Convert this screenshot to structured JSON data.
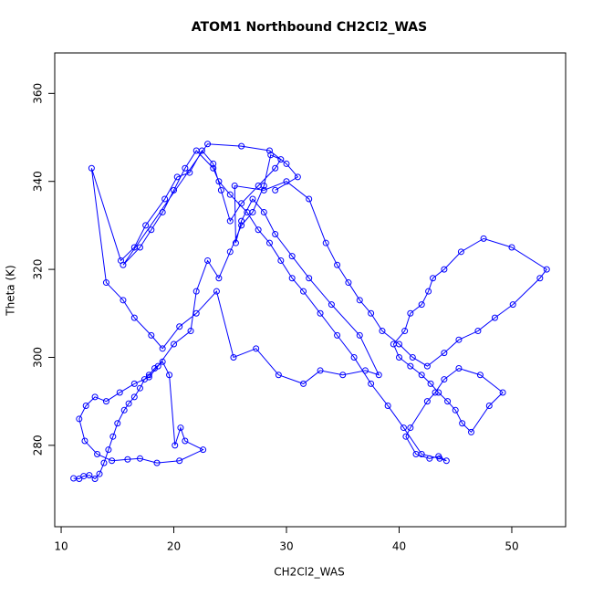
{
  "chart_data": {
    "type": "line",
    "title": "ATOM1 Northbound CH2Cl2_WAS",
    "x_label": "CH2Cl2_WAS",
    "y_label": "Theta (K)",
    "marker": "open-circle",
    "grid": false,
    "x": [
      11.1,
      11.6,
      12.0,
      12.5,
      13.0,
      13.4,
      13.8,
      14.2,
      14.6,
      15.0,
      15.6,
      16.0,
      16.5,
      17.0,
      17.4,
      17.8,
      18.3,
      19.0,
      19.6,
      20.1,
      20.6,
      21.0,
      22.6,
      20.5,
      18.5,
      17.0,
      15.9,
      14.5,
      13.2,
      12.1,
      11.6,
      12.2,
      13.0,
      14.0,
      15.2,
      16.5,
      17.8,
      18.6,
      20.0,
      21.5,
      22.0,
      23.0,
      24.0,
      25.0,
      26.0,
      27.0,
      28.0,
      28.6,
      29.5,
      29.0,
      27.5,
      26.0,
      25.0,
      24.2,
      23.5,
      22.5,
      21.4,
      20.3,
      19.2,
      17.5,
      16.5,
      15.3,
      12.7,
      14.0,
      15.5,
      16.5,
      18.0,
      19.0,
      20.5,
      22.0,
      23.8,
      25.3,
      27.3,
      29.3,
      31.5,
      33.0,
      35.0,
      37.0,
      38.2,
      36.5,
      34.0,
      32.0,
      30.5,
      29.0,
      28.0,
      27.0,
      26.0,
      25.5,
      25.4,
      28.0,
      30.0,
      32.0,
      33.5,
      34.5,
      35.5,
      36.5,
      37.5,
      38.5,
      40.0,
      41.2,
      42.5,
      44.0,
      45.3,
      47.0,
      48.5,
      50.1,
      52.5,
      53.1,
      50.0,
      47.5,
      45.5,
      44.0,
      43.0,
      42.6,
      42.0,
      41.0,
      40.5,
      39.5,
      40.0,
      41.0,
      42.0,
      42.8,
      43.5,
      44.3,
      45.0,
      45.6,
      46.4,
      48.0,
      49.2,
      47.2,
      45.3,
      44.0,
      43.2,
      42.5,
      41.0,
      40.6,
      41.5,
      42.7,
      43.5,
      44.2,
      43.6,
      42.0,
      40.4,
      39.0,
      37.5,
      36.0,
      34.5,
      33.0,
      31.5,
      30.5,
      29.5,
      28.5,
      27.5,
      26.5,
      25.0,
      24.0,
      23.5,
      22.0,
      21.0,
      20.0,
      19.0,
      18.0,
      17.0,
      15.5,
      23.0,
      26.0,
      28.5,
      30.0,
      31.0,
      29.0
    ],
    "series": [
      {
        "color": "#0000ff",
        "values": [
          272.5,
          272.4,
          273.0,
          273.2,
          272.4,
          273.5,
          276,
          279,
          282,
          285,
          288,
          289.5,
          291,
          293,
          295,
          296,
          297.5,
          299,
          296,
          280,
          284,
          281,
          279,
          276.5,
          276,
          277,
          276.8,
          276.5,
          278,
          281,
          286,
          289,
          291,
          290,
          292,
          294,
          295.5,
          298,
          303,
          306,
          315,
          322,
          318,
          324,
          330,
          333,
          339,
          346,
          345,
          343,
          339,
          335,
          331,
          338,
          344,
          347,
          342,
          341,
          336,
          330,
          325,
          322,
          343,
          317,
          313,
          309,
          305,
          302,
          307,
          310,
          315,
          300,
          302,
          296,
          294,
          297,
          296,
          297,
          296,
          305,
          312,
          318,
          323,
          328,
          333,
          336,
          331,
          326,
          339,
          338,
          340,
          336,
          326,
          321,
          317,
          313,
          310,
          306,
          303,
          300,
          298,
          301,
          304,
          306,
          309,
          312,
          318,
          320,
          325,
          327,
          324,
          320,
          318,
          315,
          312,
          310,
          306,
          303,
          300,
          298,
          296,
          294,
          292,
          290,
          288,
          285,
          283,
          289,
          292,
          296,
          297.5,
          295,
          292,
          290,
          284,
          282,
          278,
          277,
          277.5,
          276.5,
          277,
          278,
          284,
          289,
          294,
          300,
          305,
          310,
          315,
          318,
          322,
          326,
          329,
          333,
          337,
          340,
          343,
          347,
          343,
          338,
          333,
          329,
          325,
          321,
          348.5,
          348,
          347,
          344,
          341,
          338
        ]
      }
    ],
    "xlim": [
      9.43,
      54.78
    ],
    "ylim": [
      261.5,
      369.2
    ],
    "xticks": [
      10,
      20,
      30,
      40,
      50
    ],
    "yticks": [
      280,
      300,
      320,
      340,
      360
    ]
  }
}
